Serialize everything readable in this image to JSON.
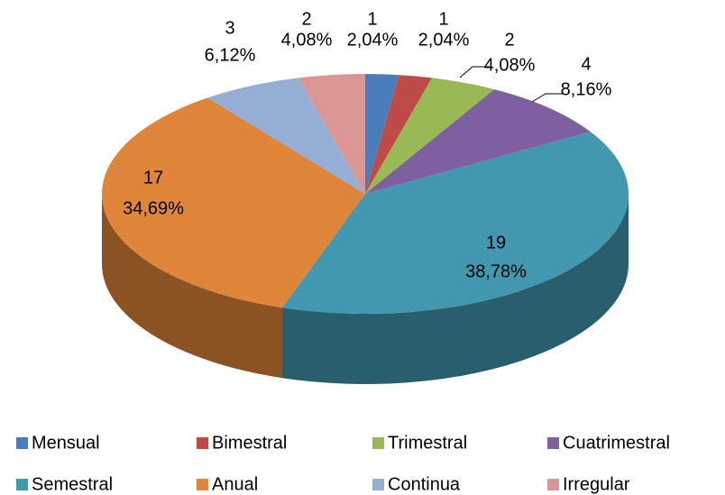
{
  "chart_data": {
    "type": "pie3d",
    "categories": [
      "Mensual",
      "Bimestral",
      "Trimestral",
      "Cuatrimestral",
      "Semestral",
      "Anual",
      "Continua",
      "Irregular"
    ],
    "values": [
      1,
      1,
      2,
      4,
      19,
      17,
      3,
      2
    ],
    "percents": [
      2.04,
      2.04,
      4.08,
      8.16,
      38.78,
      34.69,
      6.12,
      4.08
    ],
    "percent_labels": [
      "2,04%",
      "2,04%",
      "4,08%",
      "8,16%",
      "38,78%",
      "34,69%",
      "6,12%",
      "4,08%"
    ],
    "colors": [
      "#4a7ebb",
      "#be4b48",
      "#98b954",
      "#7d60a0",
      "#4198af",
      "#e0863a",
      "#95aed6",
      "#d99694"
    ],
    "legend": "bottom"
  }
}
